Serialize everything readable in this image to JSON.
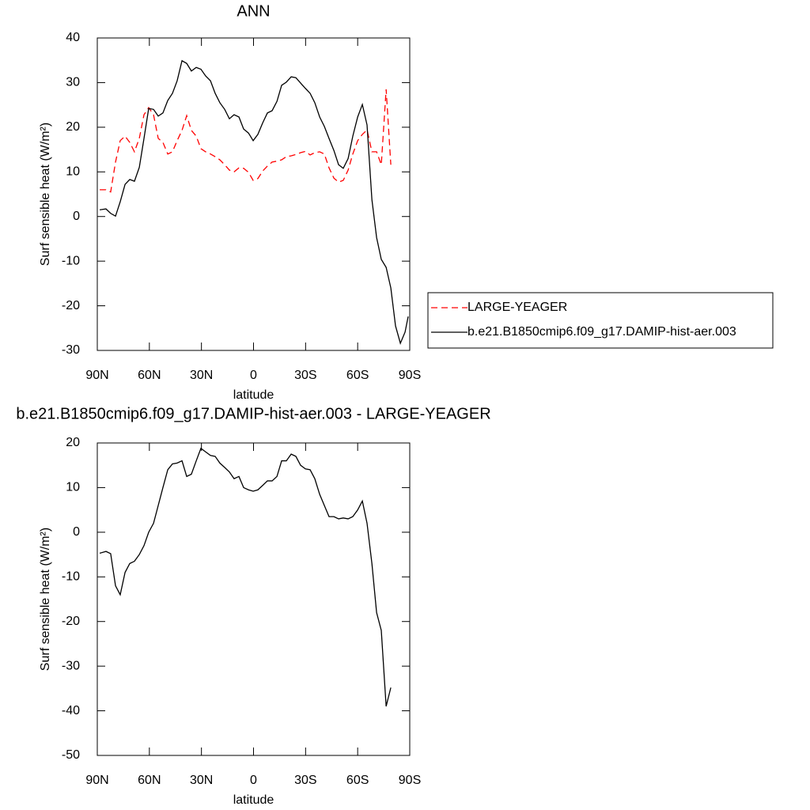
{
  "chart_data": [
    {
      "type": "line",
      "title": "ANN",
      "xlabel": "latitude",
      "ylabel": "Surf sensible heat (W/m²)",
      "xlim": [
        90,
        -90
      ],
      "xticks": [
        {
          "value": 90,
          "label": "90N"
        },
        {
          "value": 60,
          "label": "60N"
        },
        {
          "value": 30,
          "label": "30N"
        },
        0,
        {
          "value": -30,
          "label": "30S"
        },
        {
          "value": -60,
          "label": "60S"
        },
        {
          "value": -90,
          "label": "90S"
        }
      ],
      "ylim": [
        -30,
        40
      ],
      "yticks": [
        -30,
        -20,
        -10,
        0,
        10,
        20,
        30,
        40
      ],
      "legend": "right",
      "x": [
        88.6,
        85.0,
        82.3,
        79.5,
        76.8,
        74.0,
        71.3,
        68.6,
        65.8,
        63.1,
        60.4,
        57.6,
        54.9,
        52.2,
        49.4,
        46.7,
        44.0,
        41.2,
        38.5,
        35.8,
        33.0,
        30.3,
        27.6,
        24.8,
        22.1,
        19.4,
        16.6,
        13.9,
        11.2,
        8.4,
        5.7,
        2.9,
        0.2,
        -2.5,
        -5.3,
        -8.0,
        -10.7,
        -13.5,
        -16.2,
        -18.9,
        -21.7,
        -24.4,
        -27.1,
        -29.9,
        -32.6,
        -35.3,
        -38.1,
        -40.8,
        -43.5,
        -46.3,
        -49.0,
        -51.7,
        -54.5,
        -57.2,
        -60.0,
        -62.7,
        -65.4,
        -68.2,
        -70.9,
        -73.6,
        -76.4,
        -79.1,
        -81.8,
        -84.6,
        -87.3,
        -89.1
      ],
      "series": [
        {
          "name": "LARGE-YEAGER",
          "color": "#ff0000",
          "dashed": true,
          "values": [
            6,
            6,
            5.5,
            12.2,
            17,
            18,
            16.6,
            14.5,
            17.5,
            22.8,
            24.4,
            22.8,
            17.5,
            16.6,
            14,
            14.5,
            17,
            19.3,
            22.6,
            19.3,
            18,
            15.2,
            14.5,
            14,
            13.4,
            12.7,
            11.6,
            10.4,
            10,
            10.9,
            10.8,
            9.9,
            8.1,
            8.5,
            10.2,
            11.3,
            12.2,
            12.4,
            12.7,
            13.4,
            13.6,
            13.9,
            14.3,
            14.6,
            13.8,
            14.3,
            14.5,
            14,
            10.9,
            8.6,
            7.7,
            8.1,
            10.4,
            14,
            17,
            18.4,
            19.4,
            14.5,
            14.5,
            11.6,
            28.5,
            11.6,
            null,
            null,
            null,
            null
          ]
        },
        {
          "name": "b.e21.B1850cmip6.f09_g17.DAMIP-hist-aer.003",
          "color": "#000000",
          "dashed": false,
          "values": [
            1.5,
            1.7,
            0.7,
            0.1,
            3.3,
            7.2,
            8.3,
            7.9,
            11,
            17.5,
            24.2,
            24,
            22.5,
            23.2,
            26,
            27.6,
            30.4,
            34.9,
            34.3,
            32.6,
            33.4,
            33,
            31.5,
            30.4,
            27.6,
            25.5,
            24,
            21.9,
            22.8,
            22.3,
            19.6,
            18.7,
            17,
            18.4,
            21,
            23.2,
            23.7,
            25.8,
            29.4,
            30.1,
            31.3,
            31.1,
            29.9,
            28.7,
            27.6,
            25.5,
            22.3,
            20.2,
            17.5,
            14.8,
            11.6,
            10.8,
            13,
            18,
            22.3,
            25.1,
            20.5,
            3.8,
            -4.7,
            -9.6,
            -11.4,
            -16,
            -24.5,
            -28.4,
            -25.9,
            -22.4
          ]
        }
      ]
    },
    {
      "type": "line",
      "title": "b.e21.B1850cmip6.f09_g17.DAMIP-hist-aer.003 - LARGE-YEAGER",
      "xlabel": "latitude",
      "ylabel": "Surf sensible heat (W/m²)",
      "xlim": [
        90,
        -90
      ],
      "xticks": [
        {
          "value": 90,
          "label": "90N"
        },
        {
          "value": 60,
          "label": "60N"
        },
        {
          "value": 30,
          "label": "30N"
        },
        0,
        {
          "value": -30,
          "label": "30S"
        },
        {
          "value": -60,
          "label": "60S"
        },
        {
          "value": -90,
          "label": "90S"
        }
      ],
      "ylim": [
        -50,
        20
      ],
      "yticks": [
        -50,
        -40,
        -30,
        -20,
        -10,
        0,
        10,
        20
      ],
      "x": [
        88.6,
        85.0,
        82.3,
        79.5,
        76.8,
        74.0,
        71.3,
        68.6,
        65.8,
        63.1,
        60.4,
        57.6,
        54.9,
        52.2,
        49.4,
        46.7,
        44.0,
        41.2,
        38.5,
        35.8,
        33.0,
        30.3,
        27.6,
        24.8,
        22.1,
        19.4,
        16.6,
        13.9,
        11.2,
        8.4,
        5.7,
        2.9,
        0.2,
        -2.5,
        -5.3,
        -8.0,
        -10.7,
        -13.5,
        -16.2,
        -18.9,
        -21.7,
        -24.4,
        -27.1,
        -29.9,
        -32.6,
        -35.3,
        -38.1,
        -40.8,
        -43.5,
        -46.3,
        -49.0,
        -51.7,
        -54.5,
        -57.2,
        -60.0,
        -62.7,
        -65.4,
        -68.2,
        -70.9,
        -73.6,
        -76.4,
        -79.1,
        -81.8,
        -84.6,
        -87.3,
        -89.1
      ],
      "color": "#000000",
      "values": [
        -4.7,
        -4.3,
        -4.8,
        -12,
        -14,
        -9,
        -7,
        -6.5,
        -5,
        -3,
        0,
        2,
        6,
        10,
        14,
        15.3,
        15.5,
        16,
        12.5,
        13,
        16,
        18.8,
        18,
        17.2,
        17,
        15.5,
        14.5,
        13.5,
        12,
        12.5,
        10,
        9.5,
        9.2,
        9.5,
        10.5,
        11.5,
        11.5,
        12.5,
        16,
        16,
        17.5,
        17,
        15,
        14.2,
        14,
        12,
        8.5,
        6,
        3.5,
        3.5,
        3,
        3.2,
        3,
        3.5,
        5,
        7,
        2,
        -7,
        -18,
        -22,
        -39,
        -34.8,
        null,
        null,
        null,
        null
      ]
    }
  ]
}
